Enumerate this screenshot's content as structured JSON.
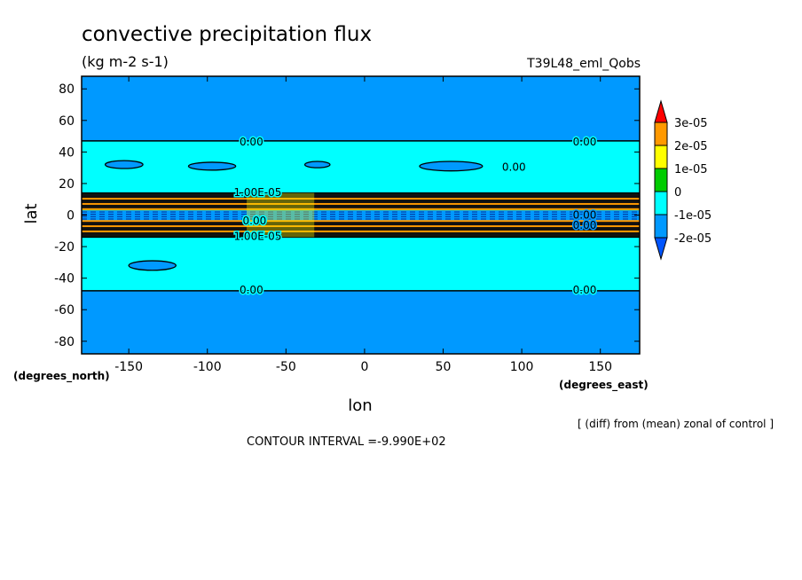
{
  "chart_data": {
    "type": "heatmap",
    "title": "convective precipitation flux",
    "units": "(kg m-2 s-1)",
    "dataset": "T39L48_eml_Qobs",
    "xlabel": "lon",
    "ylabel": "lat",
    "x_units": "(degrees_east)",
    "y_units": "(degrees_north)",
    "xlim": [
      -180,
      175
    ],
    "ylim": [
      -88,
      88
    ],
    "xticks": [
      "-150",
      "-100",
      "-50",
      "0",
      "50",
      "100",
      "150"
    ],
    "xtick_values": [
      -150,
      -100,
      -50,
      0,
      50,
      100,
      150
    ],
    "yticks": [
      "80",
      "60",
      "40",
      "20",
      "0",
      "-20",
      "-40",
      "-60",
      "-80"
    ],
    "ytick_values": [
      80,
      60,
      40,
      20,
      0,
      -20,
      -40,
      -60,
      -80
    ],
    "note": "[ (diff) from (mean) zonal of control ]",
    "contour_interval": "CONTOUR INTERVAL =-9.990E+02",
    "colorbar": {
      "labels": [
        "3e-05",
        "2e-05",
        "1e-05",
        "0",
        "-1e-05",
        "-2e-05"
      ],
      "levels": [
        3e-05,
        2e-05,
        1e-05,
        0,
        -1e-05,
        -2e-05
      ],
      "colors": [
        "#ff0000",
        "#ff9900",
        "#ffff00",
        "#00cc00",
        "#00ffff",
        "#0099ff",
        "#0055ff"
      ]
    },
    "contour_labels": [
      "0.00",
      "0.00",
      "0.00",
      "0.00",
      "0.00",
      "0.00",
      "0.00",
      "0.00",
      "1.00E-05",
      "1.00E-05"
    ],
    "bands": [
      {
        "lat_min": -88,
        "lat_max": -48,
        "level": "-1e-05"
      },
      {
        "lat_min": -48,
        "lat_max": -14,
        "level": "0"
      },
      {
        "lat_min": -14,
        "lat_max": -4,
        "level": "1e-05"
      },
      {
        "lat_min": -4,
        "lat_max": 3,
        "level": "-1e-05"
      },
      {
        "lat_min": 3,
        "lat_max": 14,
        "level": "1e-05"
      },
      {
        "lat_min": 14,
        "lat_max": 47,
        "level": "0"
      },
      {
        "lat_min": 47,
        "lat_max": 88,
        "level": "-1e-05"
      }
    ],
    "islands": [
      {
        "lon": -153,
        "lat": 32,
        "dlon": 12,
        "dlat": 2.5,
        "level": "-1e-05"
      },
      {
        "lon": -97,
        "lat": 31,
        "dlon": 15,
        "dlat": 2.5,
        "level": "-1e-05"
      },
      {
        "lon": -30,
        "lat": 32,
        "dlon": 8,
        "dlat": 2,
        "level": "-1e-05"
      },
      {
        "lon": 55,
        "lat": 31,
        "dlon": 20,
        "dlat": 3,
        "level": "-1e-05"
      },
      {
        "lon": -135,
        "lat": -32,
        "dlon": 15,
        "dlat": 3,
        "level": "-1e-05"
      }
    ]
  }
}
